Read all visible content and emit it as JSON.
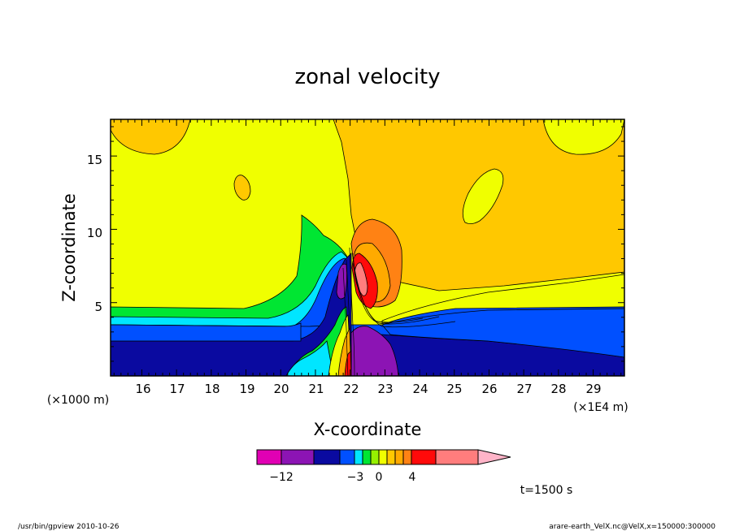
{
  "chart_data": {
    "type": "heatmap",
    "title": "zonal velocity",
    "xlabel": "X-coordinate",
    "ylabel": "Z-coordinate",
    "x_unit_left": "(×1000 m)",
    "x_unit_right": "(×1E4 m)",
    "xlim": [
      15.1,
      29.9
    ],
    "ylim": [
      0,
      17.5
    ],
    "x_ticks": [
      "16",
      "17",
      "18",
      "19",
      "20",
      "21",
      "22",
      "23",
      "24",
      "25",
      "26",
      "27",
      "28",
      "29"
    ],
    "y_ticks": [
      "5",
      "10",
      "15"
    ],
    "colorbar": {
      "levels": [
        -15,
        -12,
        -9,
        -6,
        -4,
        -3,
        -2,
        -1,
        0,
        1,
        2,
        3,
        4,
        6,
        9
      ],
      "colors": [
        "#e100b4",
        "#8c14b4",
        "#0a0aa0",
        "#0050ff",
        "#00e6ff",
        "#00e632",
        "#96f000",
        "#f0ff00",
        "#ffc800",
        "#ffaa00",
        "#ff8214",
        "#ff0a0a",
        "#ff7d7d",
        "#ffb4c8"
      ],
      "tick_labels": [
        {
          "value": -12,
          "label": "−12"
        },
        {
          "value": -3,
          "label": "−3"
        },
        {
          "value": 0,
          "label": "0"
        },
        {
          "value": 4,
          "label": "4"
        }
      ]
    },
    "annotation": "t=1500 s"
  },
  "footer": {
    "left": "/usr/bin/gpview   2010-10-26",
    "right": "arare-earth_VelX.nc@VelX,x=150000:300000"
  }
}
